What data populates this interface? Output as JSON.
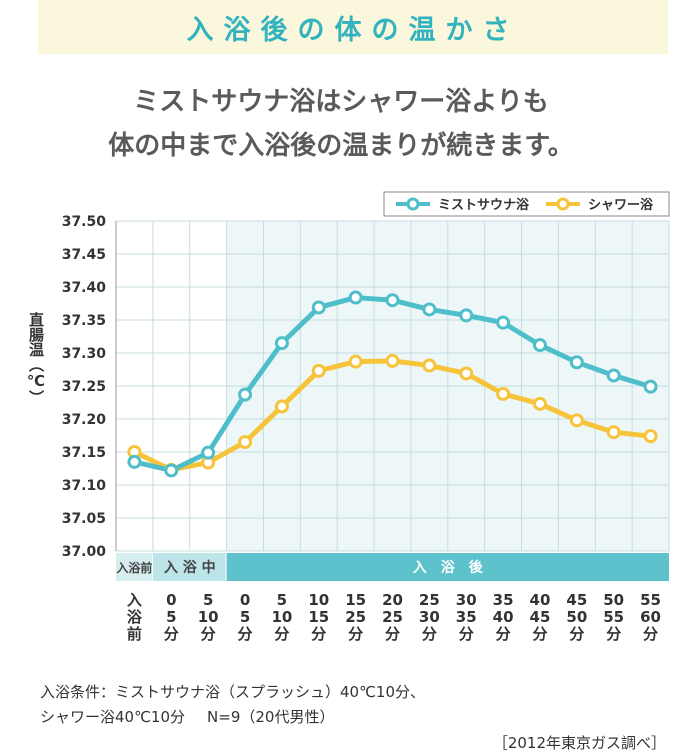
{
  "header": {
    "title": "入浴後の体の温かさ"
  },
  "subtitle": {
    "line1": "ミストサウナ浴はシャワー浴よりも",
    "line2": "体の中まで入浴後の温まりが続きます。"
  },
  "chart_data": {
    "type": "line",
    "ylabel": "直腸温（℃）",
    "ylim": [
      37.0,
      37.5
    ],
    "ystep": 0.05,
    "grid": true,
    "legend_position": "top-right",
    "x_labels": [
      [
        "入",
        "浴",
        "前"
      ],
      [
        "0",
        "5",
        "分"
      ],
      [
        "5",
        "10",
        "分"
      ],
      [
        "0",
        "5",
        "分"
      ],
      [
        "5",
        "10",
        "分"
      ],
      [
        "10",
        "15",
        "分"
      ],
      [
        "15",
        "25",
        "分"
      ],
      [
        "20",
        "25",
        "分"
      ],
      [
        "25",
        "30",
        "分"
      ],
      [
        "30",
        "35",
        "分"
      ],
      [
        "35",
        "40",
        "分"
      ],
      [
        "40",
        "45",
        "分"
      ],
      [
        "45",
        "50",
        "分"
      ],
      [
        "50",
        "55",
        "分"
      ],
      [
        "55",
        "60",
        "分"
      ]
    ],
    "phases": [
      {
        "label": "入浴前",
        "start": 0,
        "end": 0
      },
      {
        "label": "入 浴 中",
        "start": 1,
        "end": 2
      },
      {
        "label": "入　浴　後",
        "start": 3,
        "end": 14
      }
    ],
    "series": [
      {
        "name": "ミストサウナ浴",
        "color": "#4ebfca",
        "values": [
          37.135,
          37.122,
          37.149,
          37.237,
          37.315,
          37.369,
          37.384,
          37.38,
          37.366,
          37.357,
          37.346,
          37.312,
          37.286,
          37.266,
          37.249
        ]
      },
      {
        "name": "シャワー浴",
        "color": "#f7c33a",
        "values": [
          37.15,
          37.123,
          37.134,
          37.165,
          37.219,
          37.273,
          37.287,
          37.288,
          37.281,
          37.269,
          37.238,
          37.223,
          37.198,
          37.18,
          37.174
        ]
      }
    ],
    "colors": {
      "after_bg": "#eef7f8",
      "before_band": "#d7eef1",
      "during_band": "#bde4e8",
      "after_band": "#5dc2cc",
      "grid": "#c5dde0"
    }
  },
  "footer": {
    "conditions_line1": "入浴条件：ミストサウナ浴（スプラッシュ）40℃10分、",
    "conditions_line2a": "シャワー浴40℃10分",
    "conditions_line2b": "N=9（20代男性）",
    "source": "［2012年東京ガス調べ］"
  }
}
